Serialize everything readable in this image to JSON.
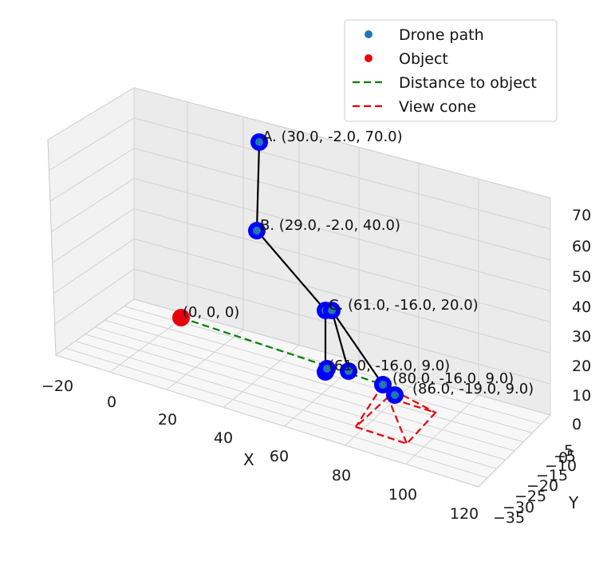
{
  "chart_data": {
    "type": "scatter",
    "projection": "3d",
    "xlabel": "X",
    "ylabel": "Y",
    "zlabel": "",
    "xlim": [
      -20,
      120
    ],
    "ylim": [
      -35,
      5
    ],
    "zlim": [
      0,
      70
    ],
    "x_ticks": [
      "−20",
      "0",
      "20",
      "40",
      "60",
      "80",
      "100",
      "120"
    ],
    "y_ticks": [
      "−35",
      "−30",
      "−25",
      "−20",
      "−15",
      "−10",
      "−5",
      "0",
      "5"
    ],
    "z_ticks": [
      "0",
      "10",
      "20",
      "30",
      "40",
      "50",
      "60",
      "70"
    ],
    "grid": true,
    "legend_position": "top-right",
    "legend": [
      {
        "label": "Drone path",
        "marker": "dot",
        "color": "#1f77b4"
      },
      {
        "label": "Object",
        "marker": "dot",
        "color": "#e8000b"
      },
      {
        "label": "Distance to object",
        "marker": "dashed-line",
        "color": "#008000"
      },
      {
        "label": "View cone",
        "marker": "dashed-line",
        "color": "#e8000b"
      }
    ],
    "object": {
      "x": 0,
      "y": 0,
      "z": 0,
      "label": "(0, 0, 0)",
      "color": "#e8000b"
    },
    "drone_points": [
      {
        "id": "A",
        "x": 30,
        "y": -2,
        "z": 70,
        "label": "A. (30.0, -2.0, 70.0)"
      },
      {
        "id": "B",
        "x": 29,
        "y": -2,
        "z": 40,
        "label": "B. (29.0, -2.0, 40.0)"
      },
      {
        "id": "C",
        "x": 61,
        "y": -16,
        "z": 20,
        "label": "C. (61.0, -16.0, 20.0)"
      },
      {
        "id": "D",
        "x": 65,
        "y": -16,
        "z": 20,
        "label": ""
      },
      {
        "id": "E",
        "x": 61,
        "y": -16,
        "z": 9,
        "label": "(61.0, -16.0, 9.0)"
      },
      {
        "id": "F",
        "x": 68,
        "y": -18,
        "z": 9,
        "label": ""
      },
      {
        "id": "G",
        "x": 65,
        "y": -19,
        "z": 9,
        "label": ""
      },
      {
        "id": "H",
        "x": 80,
        "y": -16,
        "z": 9,
        "label": "(80.0, -16.0, 9.0)"
      },
      {
        "id": "I",
        "x": 86,
        "y": -19,
        "z": 9,
        "label": "(86.0, -19.0, 9.0)"
      }
    ],
    "path_arrows": [
      [
        "A",
        "B"
      ],
      [
        "B",
        "C"
      ],
      [
        "C",
        "E"
      ],
      [
        "D",
        "F"
      ],
      [
        "D",
        "H"
      ]
    ],
    "distance_line": {
      "from": "object",
      "to": "H",
      "color": "#008000"
    },
    "view_cone": {
      "apex": "H",
      "color": "#e8000b"
    },
    "colors": {
      "path_marker": "#0000ff",
      "path_marker_center": "#1f77b4",
      "arrow": "#000000"
    }
  }
}
